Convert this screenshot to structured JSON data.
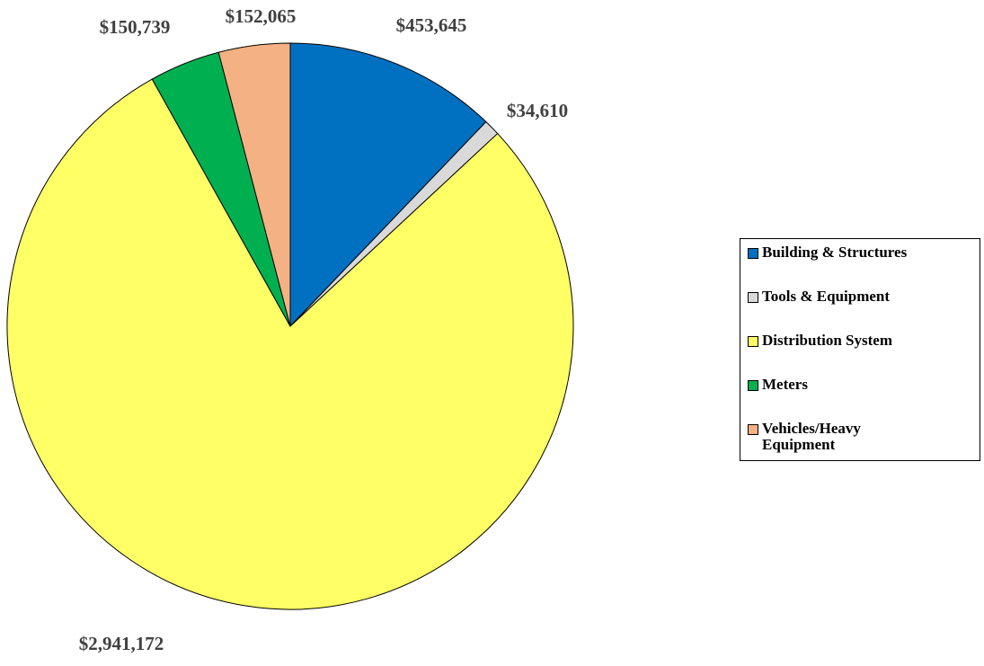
{
  "chart_data": {
    "type": "pie",
    "categories": [
      "Building & Structures",
      "Tools & Equipment",
      "Distribution System",
      "Meters",
      "Vehicles/Heavy Equipment"
    ],
    "values": [
      453645,
      34610,
      2941172,
      150739,
      152065
    ],
    "value_labels": [
      "$453,645",
      "$34,610",
      "$2,941,172",
      "$150,739",
      "$152,065"
    ],
    "colors": [
      "#0070c0",
      "#d9d9d9",
      "#ffff66",
      "#00b050",
      "#f4b183"
    ],
    "legend": "right"
  }
}
